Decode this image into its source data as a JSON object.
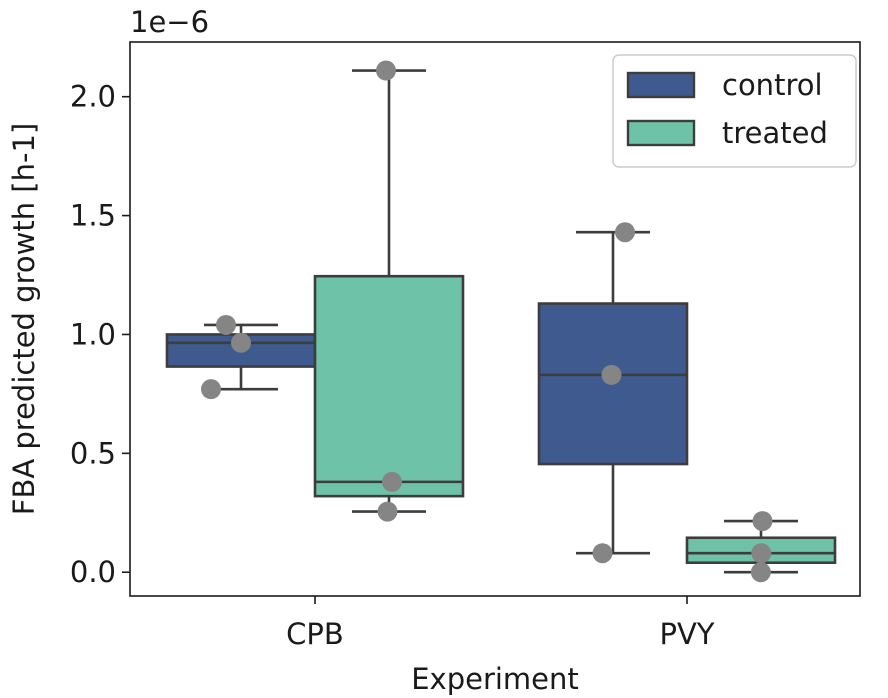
{
  "chart_data": {
    "type": "box",
    "xlabel": "Experiment",
    "ylabel": "FBA predicted growth [h-1]",
    "offset_label": "1e−6",
    "categories": [
      "CPB",
      "PVY"
    ],
    "ylim": [
      -0.1,
      2.23
    ],
    "yticks": [
      0.0,
      0.5,
      1.0,
      1.5,
      2.0
    ],
    "ytick_labels": [
      "0.0",
      "0.5",
      "1.0",
      "1.5",
      "2.0"
    ],
    "legend_position": "top-right",
    "grid": false,
    "series": [
      {
        "name": "control",
        "color": "#3f5a8f",
        "boxes": [
          {
            "category": "CPB",
            "whisker_low": 0.77,
            "q1": 0.865,
            "median": 0.965,
            "q3": 1.0,
            "whisker_high": 1.04,
            "points": [
              1.04,
              0.965,
              0.77
            ]
          },
          {
            "category": "PVY",
            "whisker_low": 0.08,
            "q1": 0.455,
            "median": 0.83,
            "q3": 1.13,
            "whisker_high": 1.43,
            "points": [
              1.43,
              0.83,
              0.08
            ]
          }
        ]
      },
      {
        "name": "treated",
        "color": "#6ec2a7",
        "boxes": [
          {
            "category": "CPB",
            "whisker_low": 0.255,
            "q1": 0.32,
            "median": 0.38,
            "q3": 1.245,
            "whisker_high": 2.11,
            "points": [
              2.11,
              0.38,
              0.255
            ]
          },
          {
            "category": "PVY",
            "whisker_low": 0.0,
            "q1": 0.04,
            "median": 0.08,
            "q3": 0.145,
            "whisker_high": 0.215,
            "points": [
              0.215,
              0.08,
              0.0
            ]
          }
        ]
      }
    ]
  }
}
